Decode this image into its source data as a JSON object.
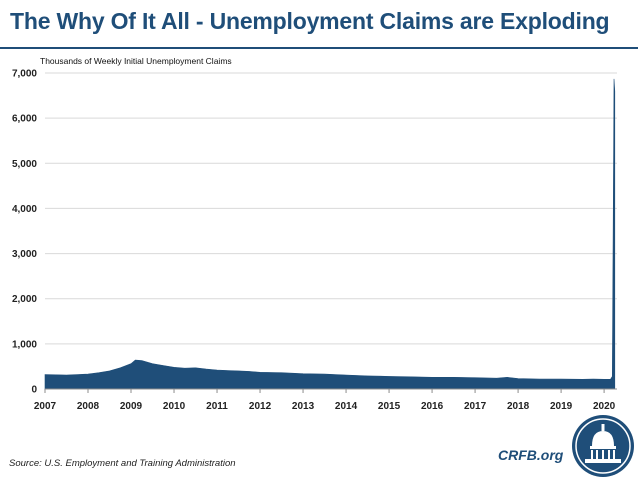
{
  "header": {
    "title": "The Why Of It All - Unemployment Claims are Exploding"
  },
  "footer": {
    "source": "Source: U.S. Employment and Training Administration",
    "brand": "CRFB.org"
  },
  "colors": {
    "series": "#1f4e79",
    "title": "#1f4e79",
    "grid": "#d9d9d9"
  },
  "chart_data": {
    "type": "area",
    "title": "",
    "ylabel": "Thousands of Weekly Initial Unemployment Claims",
    "xlabel": "",
    "xlim": [
      2007,
      2020.3
    ],
    "ylim": [
      0,
      7000
    ],
    "yticks": [
      0,
      1000,
      2000,
      3000,
      4000,
      5000,
      6000,
      7000
    ],
    "ytick_labels": [
      "0",
      "1,000",
      "2,000",
      "3,000",
      "4,000",
      "5,000",
      "6,000",
      "7,000"
    ],
    "xtick_labels": [
      "2007",
      "2008",
      "2009",
      "2010",
      "2011",
      "2012",
      "2013",
      "2014",
      "2015",
      "2016",
      "2017",
      "2018",
      "2019",
      "2020"
    ],
    "grid": true,
    "series": [
      {
        "name": "Weekly Initial Unemployment Claims (thousands)",
        "x": [
          2007.0,
          2007.25,
          2007.5,
          2007.75,
          2008.0,
          2008.25,
          2008.5,
          2008.75,
          2009.0,
          2009.1,
          2009.25,
          2009.5,
          2009.75,
          2010.0,
          2010.25,
          2010.5,
          2010.75,
          2011.0,
          2011.25,
          2011.5,
          2011.75,
          2012.0,
          2012.5,
          2013.0,
          2013.5,
          2014.0,
          2014.5,
          2015.0,
          2015.5,
          2016.0,
          2016.5,
          2017.0,
          2017.5,
          2017.75,
          2018.0,
          2018.5,
          2019.0,
          2019.5,
          2019.75,
          2020.0,
          2020.15,
          2020.19,
          2020.21,
          2020.23,
          2020.25
        ],
        "y": [
          320,
          315,
          310,
          320,
          330,
          360,
          400,
          470,
          560,
          640,
          630,
          560,
          520,
          480,
          460,
          470,
          440,
          420,
          410,
          400,
          390,
          370,
          360,
          340,
          330,
          310,
          290,
          280,
          270,
          260,
          260,
          250,
          240,
          260,
          230,
          220,
          220,
          215,
          220,
          215,
          215,
          280,
          3300,
          6870,
          6600
        ]
      }
    ]
  }
}
